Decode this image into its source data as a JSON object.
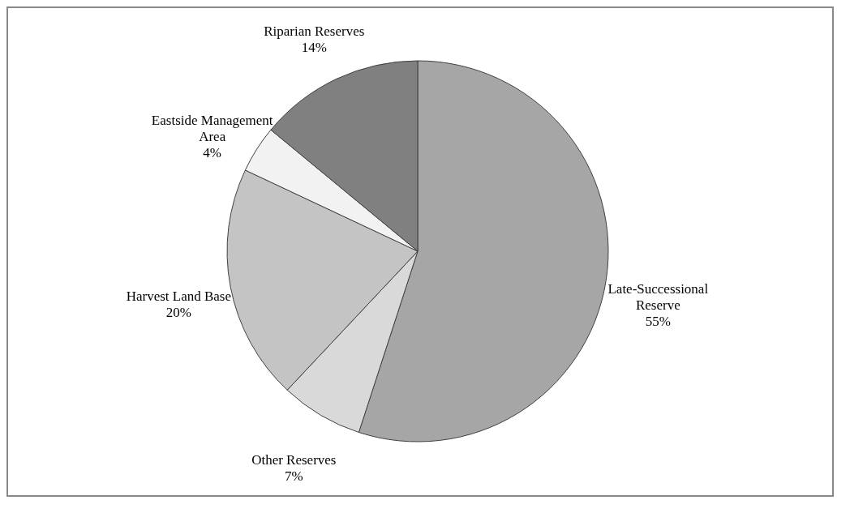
{
  "chart_data": {
    "type": "pie",
    "categories": [
      "Late-Successional Reserve",
      "Other Reserves",
      "Harvest Land Base",
      "Eastside Management Area",
      "Riparian Reserves"
    ],
    "values": [
      55,
      7,
      20,
      4,
      14
    ],
    "value_labels": [
      "55%",
      "7%",
      "20%",
      "4%",
      "14%"
    ],
    "colors": [
      "#a6a6a6",
      "#d9d9d9",
      "#c4c4c4",
      "#f2f2f2",
      "#808080"
    ],
    "legend": false
  }
}
